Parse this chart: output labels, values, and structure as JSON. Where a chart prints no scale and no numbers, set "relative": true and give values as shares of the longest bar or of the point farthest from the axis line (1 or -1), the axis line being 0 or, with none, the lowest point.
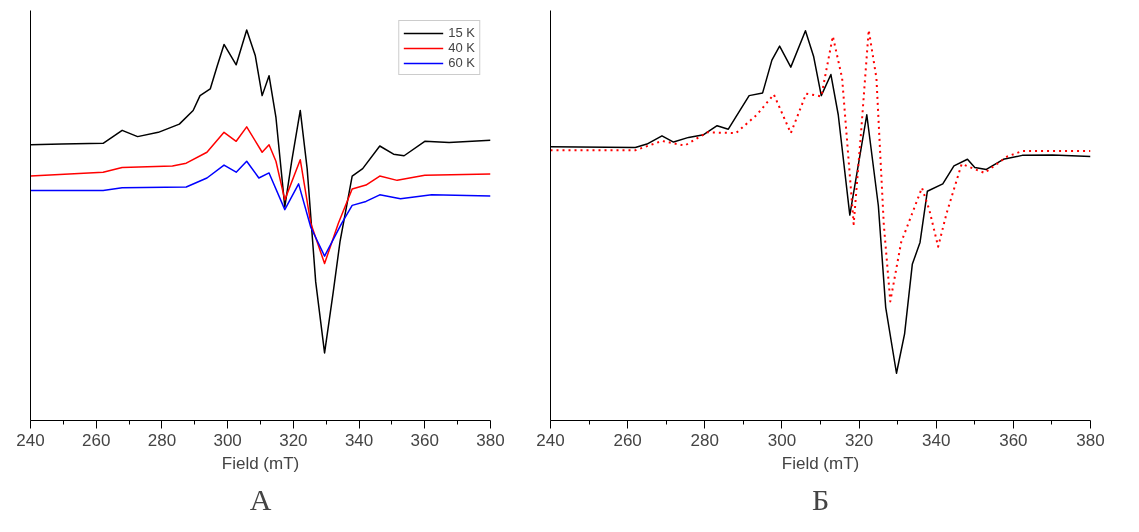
{
  "chart_data": [
    {
      "type": "line",
      "relative": true,
      "xlabel": "Field (mT)",
      "annotations": [
        "А"
      ],
      "xlim": [
        240,
        380
      ],
      "xticks": [
        240,
        260,
        280,
        300,
        320,
        340,
        360,
        380
      ],
      "tick_labels": "x",
      "grid": false,
      "legend": "top right",
      "series": [
        {
          "name": "15 K",
          "color": "#000000",
          "x": [
            240,
            249.5,
            262.1,
            267.9,
            272.6,
            278.9,
            285.3,
            289.5,
            291.6,
            294.7,
            296.8,
            298.9,
            302.6,
            305.8,
            308.4,
            310.5,
            312.6,
            314.7,
            317.4,
            319.5,
            322.1,
            324.2,
            326.8,
            329.5,
            332.1,
            334.2,
            337.9,
            341.1,
            346.3,
            350.5,
            353.7,
            360.0,
            367.4,
            380
          ],
          "values": [
            0.706,
            0.708,
            0.71,
            0.743,
            0.727,
            0.738,
            0.759,
            0.794,
            0.832,
            0.849,
            0.907,
            0.963,
            0.911,
            1.0,
            0.935,
            0.832,
            0.883,
            0.776,
            0.547,
            0.664,
            0.794,
            0.645,
            0.355,
            0.173,
            0.327,
            0.458,
            0.626,
            0.645,
            0.703,
            0.682,
            0.678,
            0.715,
            0.712,
            0.718
          ]
        },
        {
          "name": "40 K",
          "color": "#ff0000",
          "x": [
            240,
            262.1,
            267.9,
            283.2,
            287.4,
            293.7,
            298.9,
            302.6,
            305.8,
            310.5,
            312.6,
            314.7,
            317.4,
            322.1,
            325.3,
            329.5,
            333.7,
            337.9,
            342.1,
            346.3,
            351.6,
            360.0,
            380
          ],
          "values": [
            0.626,
            0.636,
            0.648,
            0.652,
            0.659,
            0.687,
            0.738,
            0.715,
            0.752,
            0.687,
            0.706,
            0.664,
            0.565,
            0.668,
            0.505,
            0.402,
            0.505,
            0.593,
            0.603,
            0.626,
            0.615,
            0.628,
            0.631
          ]
        },
        {
          "name": "60 K",
          "color": "#0000ff",
          "x": [
            240,
            262.1,
            267.9,
            287.4,
            293.7,
            298.9,
            302.6,
            305.8,
            309.5,
            312.6,
            317.4,
            321.6,
            325.3,
            329.5,
            334.7,
            337.9,
            342.1,
            346.3,
            352.6,
            362.1,
            380
          ],
          "values": [
            0.589,
            0.589,
            0.596,
            0.598,
            0.621,
            0.654,
            0.636,
            0.664,
            0.621,
            0.634,
            0.54,
            0.606,
            0.495,
            0.421,
            0.505,
            0.551,
            0.561,
            0.578,
            0.568,
            0.578,
            0.575
          ]
        }
      ]
    },
    {
      "type": "line",
      "relative": true,
      "xlabel": "Field (mT)",
      "annotations": [
        "Б"
      ],
      "xlim": [
        240,
        380
      ],
      "xticks": [
        240,
        260,
        280,
        300,
        320,
        340,
        360,
        380
      ],
      "tick_labels": "x",
      "grid": false,
      "series": [
        {
          "color": "#000000",
          "line_style": "solid",
          "x": [
            240,
            262.0,
            265.0,
            268.9,
            271.9,
            275.8,
            279.7,
            283.2,
            286.1,
            289.6,
            291.5,
            295.0,
            297.4,
            299.4,
            302.3,
            306.1,
            308.2,
            310.2,
            312.7,
            314.6,
            317.6,
            322.0,
            325.0,
            326.9,
            329.7,
            331.8,
            333.8,
            335.8,
            337.7,
            341.7,
            344.6,
            348.1,
            350.0,
            353.0,
            357.4,
            362.3,
            370.2,
            380
          ],
          "values": [
            0.701,
            0.699,
            0.708,
            0.729,
            0.713,
            0.725,
            0.732,
            0.755,
            0.746,
            0.802,
            0.832,
            0.839,
            0.923,
            0.959,
            0.905,
            0.998,
            0.933,
            0.832,
            0.886,
            0.783,
            0.526,
            0.783,
            0.55,
            0.29,
            0.121,
            0.222,
            0.4,
            0.456,
            0.587,
            0.606,
            0.652,
            0.669,
            0.648,
            0.643,
            0.669,
            0.679,
            0.68,
            0.676
          ]
        },
        {
          "color": "#ff0000",
          "line_style": "dotted",
          "x": [
            240,
            262.0,
            268.9,
            274.8,
            280.7,
            288.1,
            293.5,
            297.9,
            302.3,
            306.3,
            310.2,
            313.2,
            315.6,
            318.6,
            320.5,
            322.5,
            324.5,
            326.4,
            328.1,
            330.9,
            333.8,
            336.3,
            338.2,
            340.5,
            342.7,
            346.6,
            352.5,
            358.4,
            362.3,
            380
          ],
          "values": [
            0.692,
            0.692,
            0.716,
            0.704,
            0.738,
            0.736,
            0.783,
            0.835,
            0.736,
            0.837,
            0.83,
            0.984,
            0.877,
            0.503,
            0.736,
            1.0,
            0.877,
            0.503,
            0.305,
            0.456,
            0.531,
            0.596,
            0.54,
            0.445,
            0.531,
            0.657,
            0.634,
            0.676,
            0.69,
            0.69
          ]
        }
      ]
    }
  ]
}
